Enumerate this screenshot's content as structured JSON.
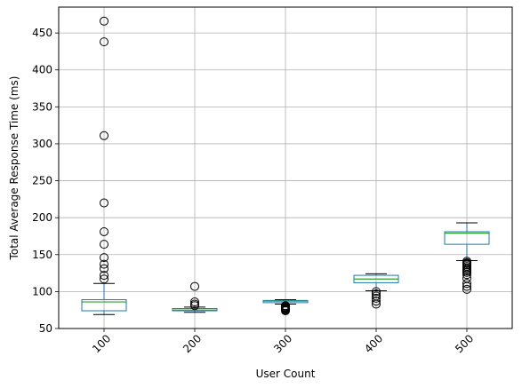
{
  "chart_data": {
    "type": "box",
    "title": "",
    "xlabel": "User Count",
    "ylabel": "Total Average Response Time (ms)",
    "categories": [
      "100",
      "200",
      "300",
      "400",
      "500"
    ],
    "ylim": [
      50,
      485
    ],
    "yticks": [
      50,
      100,
      150,
      200,
      250,
      300,
      350,
      400,
      450
    ],
    "grid": true,
    "colors": {
      "box": "#1f77b4",
      "median": "#2ca02c",
      "whisker": "#000000",
      "grid": "#b0b0b0"
    },
    "boxes": [
      {
        "category": "100",
        "whisker_low": 69,
        "q1": 74,
        "median": 86,
        "q3": 89,
        "whisker_high": 111,
        "outliers": [
          466,
          438,
          311,
          220,
          181,
          164,
          146,
          137,
          131,
          122,
          117
        ]
      },
      {
        "category": "200",
        "whisker_low": 72,
        "q1": 74,
        "median": 75,
        "q3": 77,
        "whisker_high": 79,
        "outliers": [
          107,
          86,
          83,
          81
        ]
      },
      {
        "category": "300",
        "whisker_low": 83,
        "q1": 85,
        "median": 87,
        "q3": 88,
        "whisker_high": 89,
        "outliers": [
          81,
          80,
          79,
          78,
          77,
          76,
          75,
          74
        ]
      },
      {
        "category": "400",
        "whisker_low": 101,
        "q1": 112,
        "median": 117,
        "q3": 122,
        "whisker_high": 124,
        "outliers": [
          100,
          97,
          94,
          91,
          87,
          83
        ]
      },
      {
        "category": "500",
        "whisker_low": 142,
        "q1": 164,
        "median": 179,
        "q3": 181,
        "whisker_high": 193,
        "outliers": [
          141,
          139,
          138,
          136,
          134,
          132,
          130,
          128,
          126,
          123,
          118,
          111,
          107,
          103
        ]
      }
    ]
  }
}
